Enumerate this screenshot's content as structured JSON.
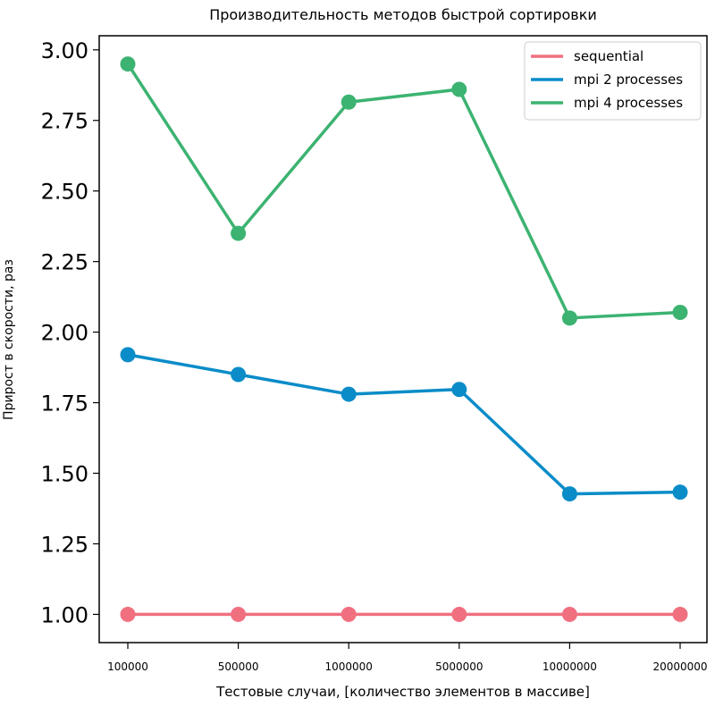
{
  "chart_data": {
    "type": "line",
    "title": "Производительность методов быстрой сортировки",
    "xlabel": "Тестовые случаи, [количество элементов в массиве]",
    "ylabel": "Прирост в скорости, раз",
    "categories": [
      "100000",
      "500000",
      "1000000",
      "5000000",
      "10000000",
      "20000000"
    ],
    "ylim": [
      0.9,
      3.05
    ],
    "yticks": [
      "1.00",
      "1.25",
      "1.50",
      "1.75",
      "2.00",
      "2.25",
      "2.50",
      "2.75",
      "3.00"
    ],
    "grid": false,
    "legend_position": "top-right",
    "series": [
      {
        "name": "sequential",
        "color": "#f07080",
        "values": [
          1.0,
          1.0,
          1.0,
          1.0,
          1.0,
          1.0
        ]
      },
      {
        "name": "mpi 2 processes",
        "color": "#0a8cc8",
        "values": [
          1.92,
          1.85,
          1.78,
          1.797,
          1.427,
          1.433
        ]
      },
      {
        "name": "mpi 4 processes",
        "color": "#3cb371",
        "values": [
          2.95,
          2.35,
          2.815,
          2.86,
          2.05,
          2.07
        ]
      }
    ]
  }
}
